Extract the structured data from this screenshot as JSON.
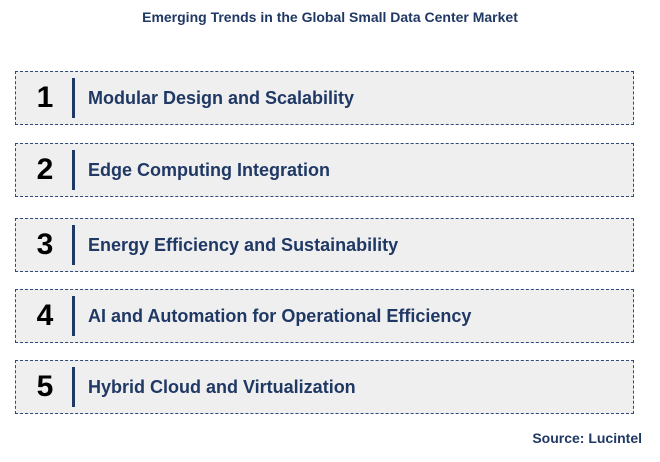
{
  "title": "Emerging Trends in the Global Small Data Center Market",
  "trends": [
    {
      "number": "1",
      "label": "Modular Design and Scalability"
    },
    {
      "number": "2",
      "label": "Edge Computing Integration"
    },
    {
      "number": "3",
      "label": "Energy Efficiency and Sustainability"
    },
    {
      "number": "4",
      "label": "AI and Automation for Operational Efficiency"
    },
    {
      "number": "5",
      "label": "Hybrid Cloud and Virtualization"
    }
  ],
  "source": "Source: Lucintel",
  "colors": {
    "title": "#1f3864",
    "box_fill": "#efefef",
    "box_border": "#2e4a7d",
    "number": "#000000"
  }
}
